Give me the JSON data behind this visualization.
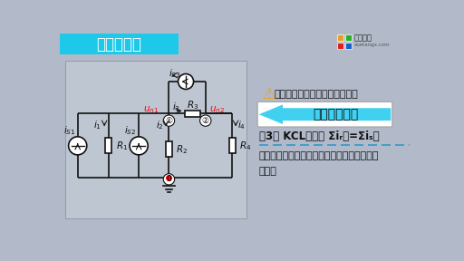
{
  "title": "节点电压法",
  "bg_color": "#b2baca",
  "header_color": "#1ec8e8",
  "header_text_color": "#ffffff",
  "circuit_bg": "#c0c8d4",
  "text_color": "#111111",
  "red_color": "#e02020",
  "cyan_color": "#40d0f0",
  "warning_text": "观察电路，电路中有几种元件？",
  "box_text": "电阵和电流源",
  "kcl_text": "（3） KCL方程为 Σiᵣ出=Σiₛ入",
  "line1": "电阵支路电流符号约定：流出为正、流入为负",
  "line2": "电流源"
}
